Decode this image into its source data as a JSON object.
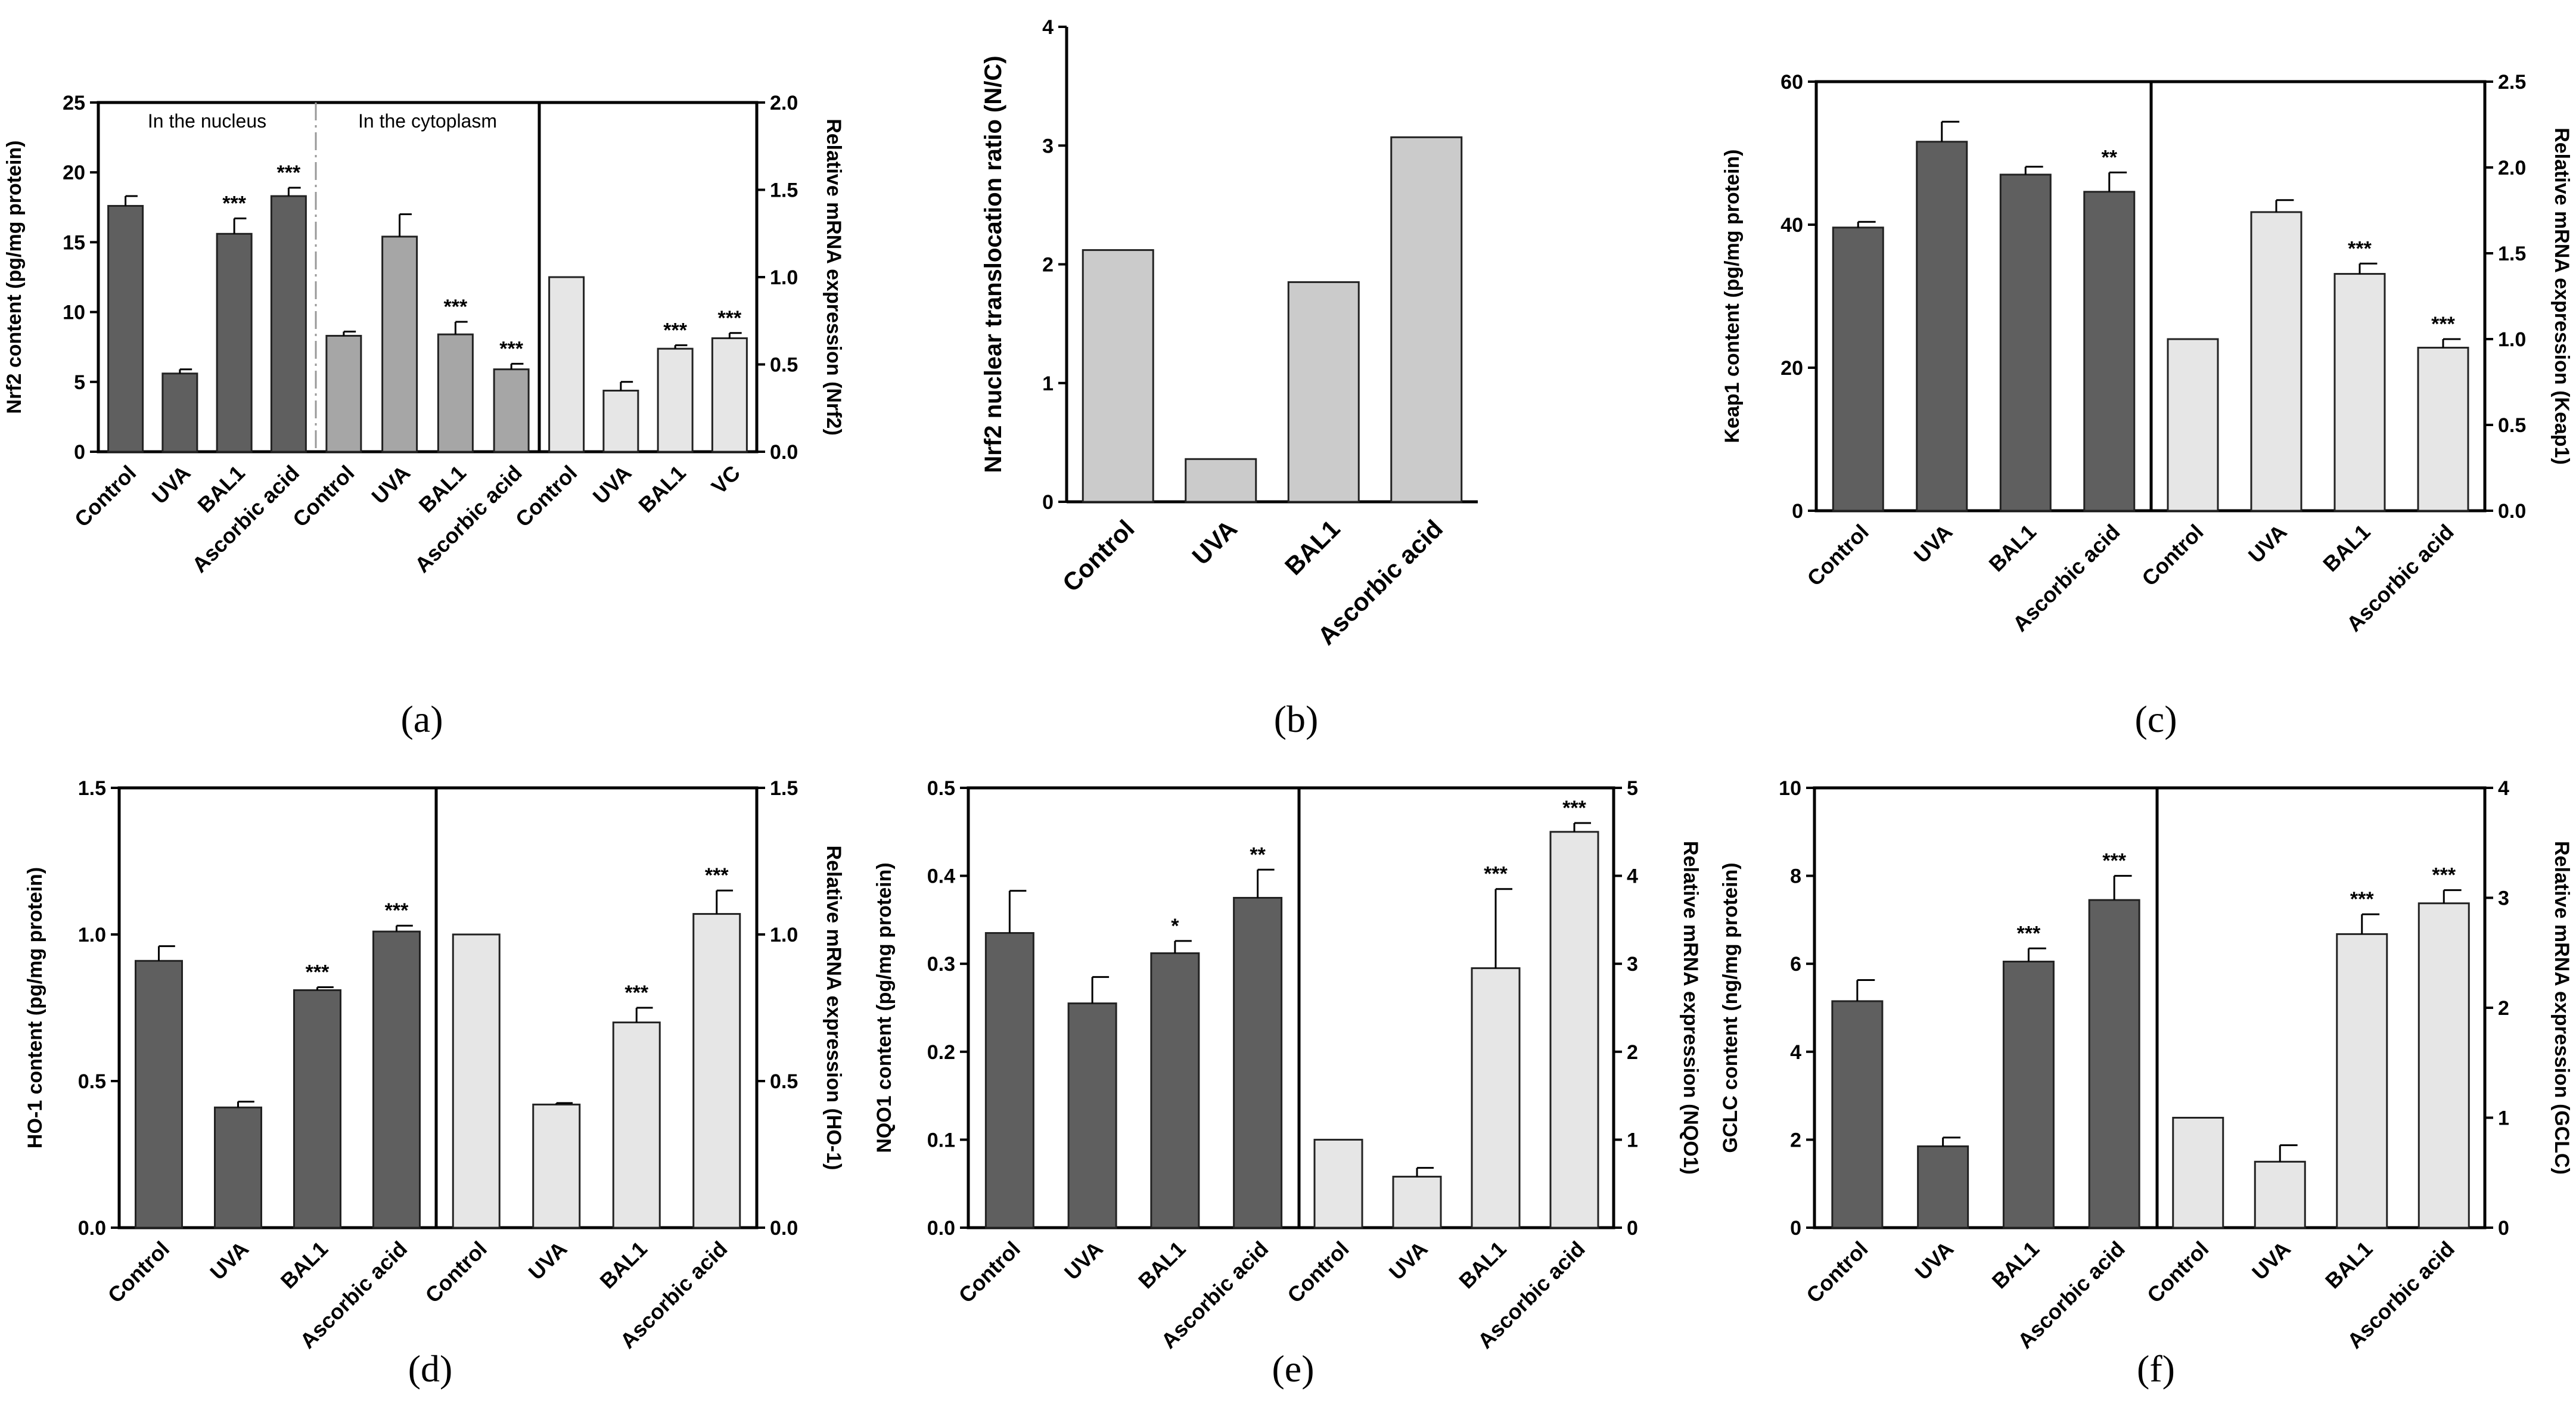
{
  "chart_data": [
    {
      "id": "a",
      "panel_label": "(a)",
      "type": "bar",
      "left_axis": {
        "title": "Nrf2 content (pg/mg protein)",
        "ylim": [
          0,
          25
        ],
        "ticks": [
          0,
          5,
          10,
          15,
          20,
          25
        ]
      },
      "right_axis": {
        "title": "Relative mRNA expression (Nrf2)",
        "ylim": [
          0,
          2.0
        ],
        "ticks": [
          0.0,
          0.5,
          1.0,
          1.5,
          2.0
        ]
      },
      "region_labels": [
        "In the nucleus",
        "In the cytoplasm"
      ],
      "groups": [
        {
          "name": "In the nucleus",
          "axis": "left",
          "color": "#5f5f5f",
          "categories": [
            "Control",
            "UVA",
            "BAL1",
            "Ascorbic acid"
          ],
          "values": [
            17.6,
            5.6,
            15.6,
            18.3
          ],
          "errors": [
            0.7,
            0.3,
            1.1,
            0.6
          ],
          "sig": [
            "",
            "",
            "***",
            "***"
          ]
        },
        {
          "name": "In the cytoplasm",
          "axis": "left",
          "color": "#a6a6a6",
          "categories": [
            "Control",
            "UVA",
            "BAL1",
            "Ascorbic acid"
          ],
          "values": [
            8.3,
            15.4,
            8.4,
            5.9
          ],
          "errors": [
            0.3,
            1.6,
            0.9,
            0.4
          ],
          "sig": [
            "",
            "",
            "***",
            "***"
          ]
        },
        {
          "name": "mRNA",
          "axis": "right",
          "color": "#e6e6e6",
          "categories": [
            "Control",
            "UVA",
            "BAL1",
            "VC"
          ],
          "values": [
            1.0,
            0.35,
            0.59,
            0.65
          ],
          "errors": [
            0.0,
            0.05,
            0.02,
            0.03
          ],
          "sig": [
            "",
            "",
            "***",
            "***"
          ]
        }
      ]
    },
    {
      "id": "b",
      "panel_label": "(b)",
      "type": "bar",
      "left_axis": {
        "title": "Nrf2 nuclear translocation ratio (N/C)",
        "ylim": [
          0,
          4
        ],
        "ticks": [
          0,
          1,
          2,
          3,
          4
        ]
      },
      "groups": [
        {
          "name": "ratio",
          "axis": "left",
          "color": "#cbcbcb",
          "categories": [
            "Control",
            "UVA",
            "BAL1",
            "Ascorbic acid"
          ],
          "values": [
            2.12,
            0.36,
            1.85,
            3.07
          ],
          "errors": [
            0,
            0,
            0,
            0
          ],
          "sig": [
            "",
            "",
            "",
            ""
          ]
        }
      ]
    },
    {
      "id": "c",
      "panel_label": "(c)",
      "type": "bar",
      "left_axis": {
        "title": "Keap1 content (pg/mg protein)",
        "ylim": [
          0,
          60
        ],
        "ticks": [
          0,
          20,
          40,
          60
        ]
      },
      "right_axis": {
        "title": "Relative mRNA expression (Keap1)",
        "ylim": [
          0,
          2.5
        ],
        "ticks": [
          0.0,
          0.5,
          1.0,
          1.5,
          2.0,
          2.5
        ]
      },
      "groups": [
        {
          "name": "protein",
          "axis": "left",
          "color": "#5f5f5f",
          "categories": [
            "Control",
            "UVA",
            "BAL1",
            "Ascorbic acid"
          ],
          "values": [
            39.6,
            51.6,
            47.0,
            44.6
          ],
          "errors": [
            0.8,
            2.8,
            1.1,
            2.7
          ],
          "sig": [
            "",
            "",
            "",
            "**"
          ]
        },
        {
          "name": "mRNA",
          "axis": "right",
          "color": "#e6e6e6",
          "categories": [
            "Control",
            "UVA",
            "BAL1",
            "Ascorbic acid"
          ],
          "values": [
            1.0,
            1.74,
            1.38,
            0.95
          ],
          "errors": [
            0.0,
            0.07,
            0.06,
            0.05
          ],
          "sig": [
            "",
            "",
            "***",
            "***"
          ]
        }
      ]
    },
    {
      "id": "d",
      "panel_label": "(d)",
      "type": "bar",
      "left_axis": {
        "title": "HO-1 content (pg/mg protein)",
        "ylim": [
          0,
          1.5
        ],
        "ticks": [
          0.0,
          0.5,
          1.0,
          1.5
        ]
      },
      "right_axis": {
        "title": "Relative mRNA expression (HO-1)",
        "ylim": [
          0,
          1.5
        ],
        "ticks": [
          0.0,
          0.5,
          1.0,
          1.5
        ]
      },
      "groups": [
        {
          "name": "protein",
          "axis": "left",
          "color": "#5f5f5f",
          "categories": [
            "Control",
            "UVA",
            "BAL1",
            "Ascorbic acid"
          ],
          "values": [
            0.91,
            0.41,
            0.81,
            1.01
          ],
          "errors": [
            0.05,
            0.02,
            0.01,
            0.02
          ],
          "sig": [
            "",
            "",
            "***",
            "***"
          ]
        },
        {
          "name": "mRNA",
          "axis": "right",
          "color": "#e6e6e6",
          "categories": [
            "Control",
            "UVA",
            "BAL1",
            "Ascorbic acid"
          ],
          "values": [
            1.0,
            0.42,
            0.7,
            1.07
          ],
          "errors": [
            0.0,
            0.005,
            0.05,
            0.08
          ],
          "sig": [
            "",
            "",
            "***",
            "***"
          ]
        }
      ]
    },
    {
      "id": "e",
      "panel_label": "(e)",
      "type": "bar",
      "left_axis": {
        "title": "NQO1 content (pg/mg protein)",
        "ylim": [
          0,
          0.5
        ],
        "ticks": [
          0.0,
          0.1,
          0.2,
          0.3,
          0.4,
          0.5
        ]
      },
      "right_axis": {
        "title": "Relative mRNA expression (NQO1)",
        "ylim": [
          0,
          5
        ],
        "ticks": [
          0,
          1,
          2,
          3,
          4,
          5
        ]
      },
      "groups": [
        {
          "name": "protein",
          "axis": "left",
          "color": "#5f5f5f",
          "categories": [
            "Control",
            "UVA",
            "BAL1",
            "Ascorbic acid"
          ],
          "values": [
            0.335,
            0.255,
            0.312,
            0.375
          ],
          "errors": [
            0.048,
            0.03,
            0.014,
            0.032
          ],
          "sig": [
            "",
            "",
            "*",
            "**"
          ]
        },
        {
          "name": "mRNA",
          "axis": "right",
          "color": "#e6e6e6",
          "categories": [
            "Control",
            "UVA",
            "BAL1",
            "Ascorbic acid"
          ],
          "values": [
            1.0,
            0.58,
            2.95,
            4.5
          ],
          "errors": [
            0.0,
            0.1,
            0.9,
            0.1
          ],
          "sig": [
            "",
            "",
            "***",
            "***"
          ]
        }
      ]
    },
    {
      "id": "f",
      "panel_label": "(f)",
      "type": "bar",
      "left_axis": {
        "title": "GCLC content (ng/mg protein)",
        "ylim": [
          0,
          10
        ],
        "ticks": [
          0,
          2,
          4,
          6,
          8,
          10
        ]
      },
      "right_axis": {
        "title": "Relative mRNA expression (GCLC)",
        "ylim": [
          0,
          4
        ],
        "ticks": [
          0,
          1,
          2,
          3,
          4
        ]
      },
      "groups": [
        {
          "name": "protein",
          "axis": "left",
          "color": "#5f5f5f",
          "categories": [
            "Control",
            "UVA",
            "BAL1",
            "Ascorbic acid"
          ],
          "values": [
            5.15,
            1.85,
            6.05,
            7.45
          ],
          "errors": [
            0.48,
            0.2,
            0.3,
            0.55
          ],
          "sig": [
            "",
            "",
            "***",
            "***"
          ]
        },
        {
          "name": "mRNA",
          "axis": "right",
          "color": "#e6e6e6",
          "categories": [
            "Control",
            "UVA",
            "BAL1",
            "Ascorbic acid"
          ],
          "values": [
            1.0,
            0.6,
            2.67,
            2.95
          ],
          "errors": [
            0.0,
            0.15,
            0.18,
            0.12
          ],
          "sig": [
            "",
            "",
            "***",
            "***"
          ]
        }
      ]
    }
  ]
}
